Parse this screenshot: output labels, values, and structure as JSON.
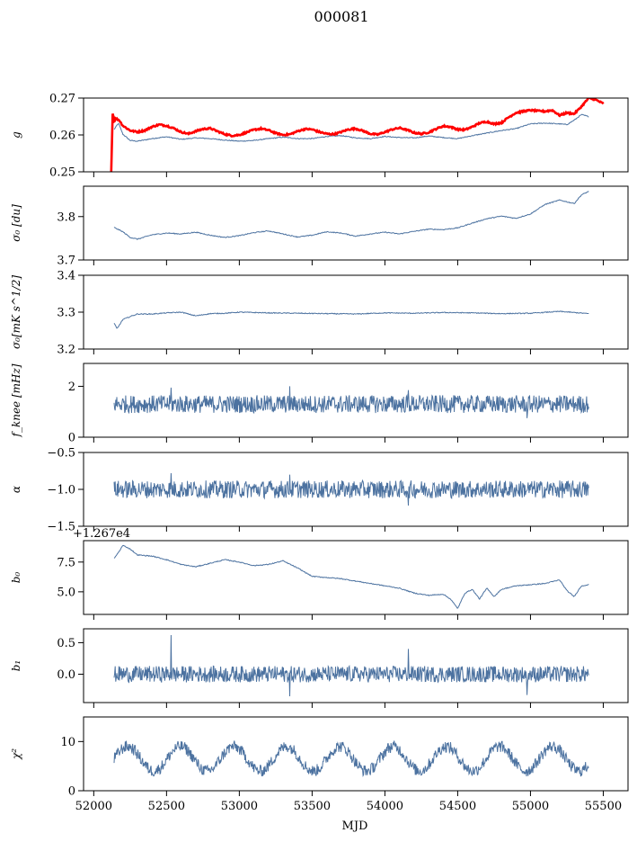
{
  "figure": {
    "title": "000081",
    "xlabel": "MJD",
    "xlim": [
      51930,
      55670
    ],
    "xticks": [
      52000,
      52500,
      53000,
      53500,
      54000,
      54500,
      55000,
      55500
    ],
    "line_color": "#4c72a0",
    "overlay_color": "#ff0000"
  },
  "chart_data": [
    {
      "type": "line",
      "ylabel": "g",
      "ylim": [
        0.25,
        0.27
      ],
      "yticks": [
        "0.25",
        "0.26",
        "0.27"
      ],
      "ytick_values": [
        0.25,
        0.26,
        0.27
      ],
      "series": [
        {
          "x": [
            52140,
            52170,
            52200,
            52250,
            52300,
            52400,
            52500,
            52600,
            52700,
            52800,
            52900,
            53000,
            53100,
            53200,
            53300,
            53400,
            53500,
            53600,
            53700,
            53800,
            53900,
            54000,
            54100,
            54200,
            54300,
            54400,
            54500,
            54600,
            54700,
            54800,
            54900,
            55000,
            55100,
            55200,
            55250,
            55300,
            55350,
            55400
          ],
          "values": [
            0.2615,
            0.2632,
            0.2602,
            0.2585,
            0.2583,
            0.259,
            0.2595,
            0.2588,
            0.2592,
            0.259,
            0.2586,
            0.2583,
            0.2585,
            0.259,
            0.2594,
            0.259,
            0.259,
            0.2596,
            0.2598,
            0.2592,
            0.259,
            0.2596,
            0.2593,
            0.2592,
            0.2597,
            0.2593,
            0.259,
            0.2598,
            0.2605,
            0.2612,
            0.2617,
            0.263,
            0.2632,
            0.263,
            0.2628,
            0.264,
            0.2655,
            0.265
          ]
        },
        {
          "x": [
            52120,
            52130,
            52140,
            52150,
            52175,
            52200,
            52250,
            52300,
            52350,
            52400,
            52450,
            52500,
            52550,
            52600,
            52650,
            52700,
            52750,
            52800,
            52850,
            52900,
            52950,
            53000,
            53050,
            53100,
            53150,
            53200,
            53250,
            53300,
            53350,
            53400,
            53450,
            53500,
            53550,
            53600,
            53650,
            53700,
            53750,
            53800,
            53850,
            53900,
            53950,
            54000,
            54050,
            54100,
            54150,
            54200,
            54250,
            54300,
            54350,
            54400,
            54450,
            54500,
            54550,
            54600,
            54650,
            54700,
            54750,
            54800,
            54850,
            54900,
            54950,
            55000,
            55050,
            55100,
            55150,
            55200,
            55250,
            55300,
            55350,
            55400,
            55450,
            55500
          ],
          "values": [
            0.25,
            0.2665,
            0.2635,
            0.2645,
            0.264,
            0.2625,
            0.2612,
            0.2608,
            0.2612,
            0.2622,
            0.2628,
            0.2625,
            0.2618,
            0.2608,
            0.2603,
            0.261,
            0.2616,
            0.2618,
            0.261,
            0.2602,
            0.2598,
            0.26,
            0.2607,
            0.2614,
            0.2617,
            0.2613,
            0.2605,
            0.26,
            0.2602,
            0.261,
            0.2616,
            0.2615,
            0.2608,
            0.2603,
            0.2602,
            0.2608,
            0.2615,
            0.2617,
            0.2611,
            0.2603,
            0.2601,
            0.2608,
            0.2615,
            0.2619,
            0.2614,
            0.2606,
            0.2603,
            0.2607,
            0.2616,
            0.2624,
            0.2622,
            0.2615,
            0.2614,
            0.2622,
            0.2632,
            0.2636,
            0.263,
            0.2633,
            0.2648,
            0.266,
            0.2664,
            0.2667,
            0.2665,
            0.2664,
            0.2667,
            0.2653,
            0.266,
            0.2657,
            0.2677,
            0.27,
            0.2695,
            0.2685
          ]
        }
      ]
    },
    {
      "type": "line",
      "ylabel": "σ₀ [du]",
      "ylim": [
        3.7,
        3.87
      ],
      "yticks": [
        "3.7",
        "3.8"
      ],
      "ytick_values": [
        3.7,
        3.8
      ],
      "series": [
        {
          "x": [
            52140,
            52200,
            52250,
            52300,
            52400,
            52500,
            52600,
            52700,
            52800,
            52900,
            53000,
            53100,
            53200,
            53300,
            53400,
            53500,
            53600,
            53700,
            53800,
            53900,
            54000,
            54100,
            54200,
            54300,
            54400,
            54500,
            54600,
            54700,
            54800,
            54900,
            55000,
            55100,
            55200,
            55300,
            55350,
            55400
          ],
          "values": [
            3.775,
            3.765,
            3.752,
            3.748,
            3.758,
            3.762,
            3.76,
            3.764,
            3.757,
            3.752,
            3.756,
            3.763,
            3.767,
            3.76,
            3.753,
            3.757,
            3.765,
            3.762,
            3.755,
            3.76,
            3.764,
            3.76,
            3.766,
            3.771,
            3.77,
            3.774,
            3.785,
            3.795,
            3.801,
            3.796,
            3.806,
            3.828,
            3.838,
            3.83,
            3.85,
            3.858
          ]
        }
      ]
    },
    {
      "type": "line",
      "ylabel": "σ₀[mK s^1/2]",
      "ylim": [
        3.2,
        3.4
      ],
      "yticks": [
        "3.2",
        "3.3",
        "3.4"
      ],
      "ytick_values": [
        3.2,
        3.3,
        3.4
      ],
      "series": [
        {
          "x": [
            52140,
            52160,
            52200,
            52250,
            52300,
            52400,
            52500,
            52600,
            52700,
            52800,
            52900,
            53000,
            53200,
            53400,
            53600,
            53800,
            54000,
            54200,
            54400,
            54600,
            54800,
            55000,
            55200,
            55400
          ],
          "values": [
            3.27,
            3.255,
            3.28,
            3.288,
            3.295,
            3.295,
            3.298,
            3.3,
            3.29,
            3.296,
            3.297,
            3.3,
            3.298,
            3.297,
            3.296,
            3.295,
            3.298,
            3.297,
            3.299,
            3.298,
            3.296,
            3.297,
            3.302,
            3.296
          ]
        }
      ]
    },
    {
      "type": "line",
      "ylabel": "f_knee [mHz]",
      "ylim": [
        0,
        2.9
      ],
      "yticks": [
        "0",
        "2"
      ],
      "ytick_values": [
        0,
        2
      ],
      "series": [
        {
          "x_range": [
            52140,
            55400
          ],
          "mean": 1.3,
          "amplitude": 0.35,
          "spikes": [
            1.95,
            2.0,
            1.85,
            0.75
          ]
        }
      ]
    },
    {
      "type": "line",
      "ylabel": "α",
      "ylim": [
        -1.5,
        -0.5
      ],
      "yticks": [
        "−1.5",
        "−1.0",
        "−0.5"
      ],
      "ytick_values": [
        -1.5,
        -1.0,
        -0.5
      ],
      "series": [
        {
          "x_range": [
            52140,
            55400
          ],
          "mean": -1.0,
          "amplitude": 0.12,
          "spikes": [
            -0.78,
            -0.8,
            -1.22
          ]
        }
      ]
    },
    {
      "type": "line",
      "ylabel": "b₀",
      "offset_label": "+1.267e4",
      "ylim": [
        3.1,
        9.3
      ],
      "yticks": [
        "5.0",
        "7.5"
      ],
      "ytick_values": [
        5.0,
        7.5
      ],
      "series": [
        {
          "x": [
            52140,
            52180,
            52200,
            52250,
            52300,
            52400,
            52500,
            52600,
            52700,
            52800,
            52900,
            53000,
            53100,
            53200,
            53300,
            53400,
            53500,
            53600,
            53700,
            53800,
            53900,
            54000,
            54100,
            54200,
            54300,
            54400,
            54450,
            54500,
            54550,
            54600,
            54650,
            54700,
            54750,
            54800,
            54900,
            55000,
            55100,
            55200,
            55250,
            55300,
            55350,
            55400
          ],
          "values": [
            7.8,
            8.5,
            8.9,
            8.6,
            8.1,
            8.0,
            7.7,
            7.3,
            7.1,
            7.4,
            7.7,
            7.5,
            7.2,
            7.3,
            7.6,
            7.0,
            6.3,
            6.2,
            6.1,
            5.9,
            5.7,
            5.5,
            5.3,
            4.9,
            4.7,
            4.8,
            4.4,
            3.6,
            4.9,
            5.2,
            4.4,
            5.3,
            4.6,
            5.2,
            5.5,
            5.6,
            5.7,
            6.0,
            5.1,
            4.6,
            5.5,
            5.6
          ]
        }
      ]
    },
    {
      "type": "line",
      "ylabel": "b₁",
      "ylim": [
        -0.45,
        0.72
      ],
      "yticks": [
        "0.0",
        "0.5"
      ],
      "ytick_values": [
        0.0,
        0.5
      ],
      "series": [
        {
          "x_range": [
            52140,
            55400
          ],
          "mean": 0.0,
          "amplitude": 0.13,
          "spikes": [
            0.62,
            -0.35,
            0.4,
            -0.33
          ]
        }
      ]
    },
    {
      "type": "line",
      "ylabel": "χ²",
      "ylim": [
        0,
        15
      ],
      "yticks": [
        "0",
        "10"
      ],
      "ytick_values": [
        0,
        10
      ],
      "series": [
        {
          "x_range": [
            52140,
            55400
          ],
          "mean": 6.5,
          "amplitude": 2.5,
          "period": 365,
          "noise": 1.2
        }
      ]
    }
  ]
}
